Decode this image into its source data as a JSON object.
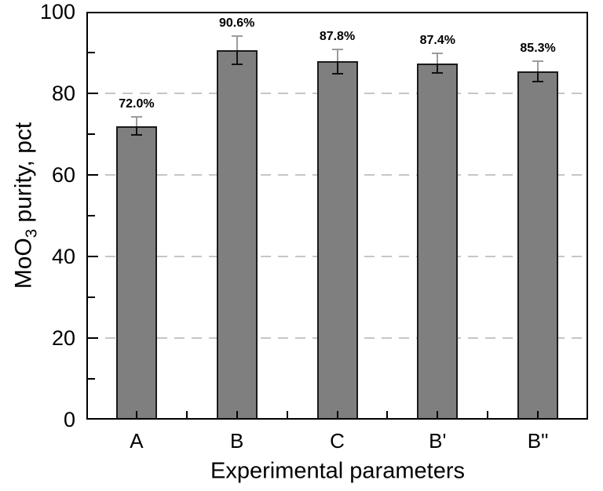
{
  "chart_data": {
    "type": "bar",
    "title": "",
    "categories": [
      "A",
      "B",
      "C",
      "B'",
      "B\""
    ],
    "values": [
      72.0,
      90.6,
      87.8,
      87.4,
      85.3
    ],
    "value_labels": [
      "72.0%",
      "90.6%",
      "87.8%",
      "87.4%",
      "85.3%"
    ],
    "errors": [
      2.2,
      3.4,
      2.9,
      2.4,
      2.5
    ],
    "xlabel": "Experimental parameters",
    "ylabel": {
      "prefix": "MoO",
      "subscript": "3",
      "suffix": " purity, pct"
    },
    "ylim": [
      0,
      100
    ],
    "yticks": [
      0,
      20,
      40,
      60,
      80,
      100
    ],
    "yticks_minor": [
      10,
      30,
      50,
      70,
      90
    ],
    "grid": "horizontal dashed at major y ticks",
    "legend": "none",
    "colors": {
      "bar_fill": "#7f7f7f",
      "bar_border": "#1a1a1a",
      "gridline": "#c6c6c6",
      "axis": "#000000",
      "error_upper": "#9c9c9c",
      "error_lower": "#111111",
      "text": "#000000",
      "background": "#ffffff"
    }
  }
}
